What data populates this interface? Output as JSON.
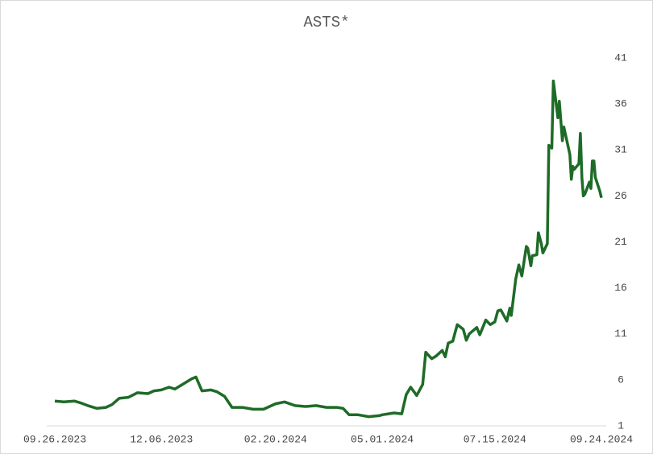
{
  "chart_data": {
    "type": "line",
    "title": "ASTS*",
    "series": [
      {
        "name": "ASTS",
        "color": "#1e6b27",
        "x": [
          "09.26.2023",
          "10.02.2023",
          "10.09.2023",
          "10.13.2023",
          "10.18.2023",
          "10.24.2023",
          "10.30.2023",
          "11.03.2023",
          "11.08.2023",
          "11.14.2023",
          "11.20.2023",
          "11.27.2023",
          "12.01.2023",
          "12.06.2023",
          "12.11.2023",
          "12.15.2023",
          "12.20.2023",
          "12.26.2023",
          "12.29.2023",
          "01.02.2024",
          "01.08.2024",
          "01.12.2024",
          "01.17.2024",
          "01.22.2024",
          "01.29.2024",
          "02.05.2024",
          "02.12.2024",
          "02.20.2024",
          "02.26.2024",
          "03.04.2024",
          "03.11.2024",
          "03.18.2024",
          "03.25.2024",
          "04.01.2024",
          "04.05.2024",
          "04.09.2024",
          "04.15.2024",
          "04.22.2024",
          "04.29.2024",
          "05.01.2024",
          "05.09.2024",
          "05.14.2024",
          "05.17.2024",
          "05.20.2024",
          "05.24.2024",
          "05.28.2024",
          "05.30.2024",
          "06.03.2024",
          "06.06.2024",
          "06.10.2024",
          "06.12.2024",
          "06.14.2024",
          "06.17.2024",
          "06.20.2024",
          "06.24.2024",
          "06.26.2024",
          "06.28.2024",
          "07.03.2024",
          "07.05.2024",
          "07.09.2024",
          "07.12.2024",
          "07.15.2024",
          "07.17.2024",
          "07.19.2024",
          "07.23.2024",
          "07.25.2024",
          "07.26.2024",
          "07.29.2024",
          "07.31.2024",
          "08.02.2024",
          "08.05.2024",
          "08.06.2024",
          "08.08.2024",
          "08.09.2024",
          "08.12.2024",
          "08.13.2024",
          "08.15.2024",
          "08.16.2024",
          "08.19.2024",
          "08.20.2024",
          "08.22.2024",
          "08.23.2024",
          "08.26.2024",
          "08.27.2024",
          "08.29.2024",
          "08.30.2024",
          "09.03.2024",
          "09.04.2024",
          "09.05.2024",
          "09.06.2024",
          "09.09.2024",
          "09.10.2024",
          "09.11.2024",
          "09.12.2024",
          "09.13.2024",
          "09.16.2024",
          "09.17.2024",
          "09.18.2024",
          "09.19.2024",
          "09.20.2024",
          "09.23.2024",
          "09.24.2024"
        ],
        "values": [
          3.7,
          3.6,
          3.7,
          3.5,
          3.2,
          2.9,
          3.0,
          3.3,
          4.0,
          4.1,
          4.6,
          4.5,
          4.8,
          4.9,
          5.2,
          5.0,
          5.5,
          6.1,
          6.3,
          4.8,
          4.9,
          4.7,
          4.2,
          3.0,
          3.0,
          2.8,
          2.8,
          3.4,
          3.6,
          3.2,
          3.1,
          3.2,
          3.0,
          3.0,
          2.9,
          2.2,
          2.2,
          2.0,
          2.1,
          2.2,
          2.4,
          2.3,
          4.4,
          5.2,
          4.3,
          5.5,
          9.0,
          8.3,
          8.6,
          9.2,
          8.5,
          10.0,
          10.2,
          12.0,
          11.5,
          10.3,
          11.0,
          11.7,
          10.9,
          12.5,
          12.0,
          12.3,
          13.5,
          13.6,
          12.4,
          13.8,
          13.0,
          17.0,
          18.5,
          17.3,
          20.5,
          20.3,
          18.4,
          19.5,
          19.6,
          22.0,
          20.8,
          19.8,
          20.8,
          31.5,
          31.2,
          38.5,
          34.5,
          36.3,
          32.0,
          33.5,
          30.5,
          27.8,
          29.2,
          28.9,
          29.5,
          32.8,
          28.0,
          26.0,
          26.2,
          27.5,
          26.8,
          29.8,
          29.8,
          28.0,
          26.5,
          25.8
        ]
      }
    ],
    "xlim": [
      "09.26.2023",
      "09.24.2024"
    ],
    "xticks": [
      "09.26.2023",
      "12.06.2023",
      "02.20.2024",
      "05.01.2024",
      "07.15.2024",
      "09.24.2024"
    ],
    "ylim": [
      1,
      41
    ],
    "yticks": [
      1,
      6,
      11,
      16,
      21,
      26,
      31,
      36,
      41
    ],
    "grid": false
  }
}
